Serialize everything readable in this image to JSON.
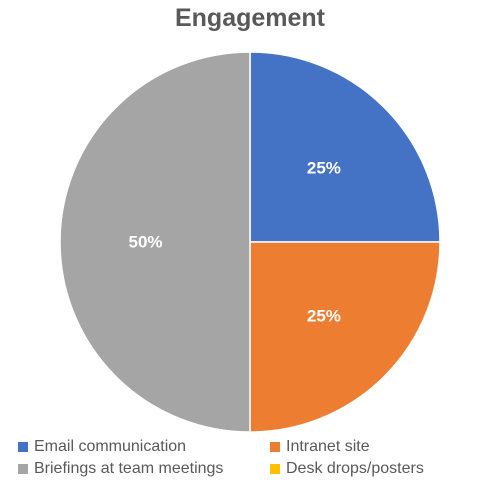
{
  "chart_data": {
    "type": "pie",
    "title": "Engagement",
    "slices": [
      {
        "name": "Email communication",
        "value": 25,
        "label": "25%",
        "color": "#4472C4"
      },
      {
        "name": "Intranet site",
        "value": 25,
        "label": "25%",
        "color": "#ED7D31"
      },
      {
        "name": "Briefings at team meetings",
        "value": 50,
        "label": "50%",
        "color": "#A5A5A5"
      },
      {
        "name": "Desk drops/posters",
        "value": 0,
        "label": "",
        "color": "#FFC000"
      }
    ],
    "start_angle_deg": 0,
    "direction": "clockwise",
    "legend_position": "bottom"
  }
}
